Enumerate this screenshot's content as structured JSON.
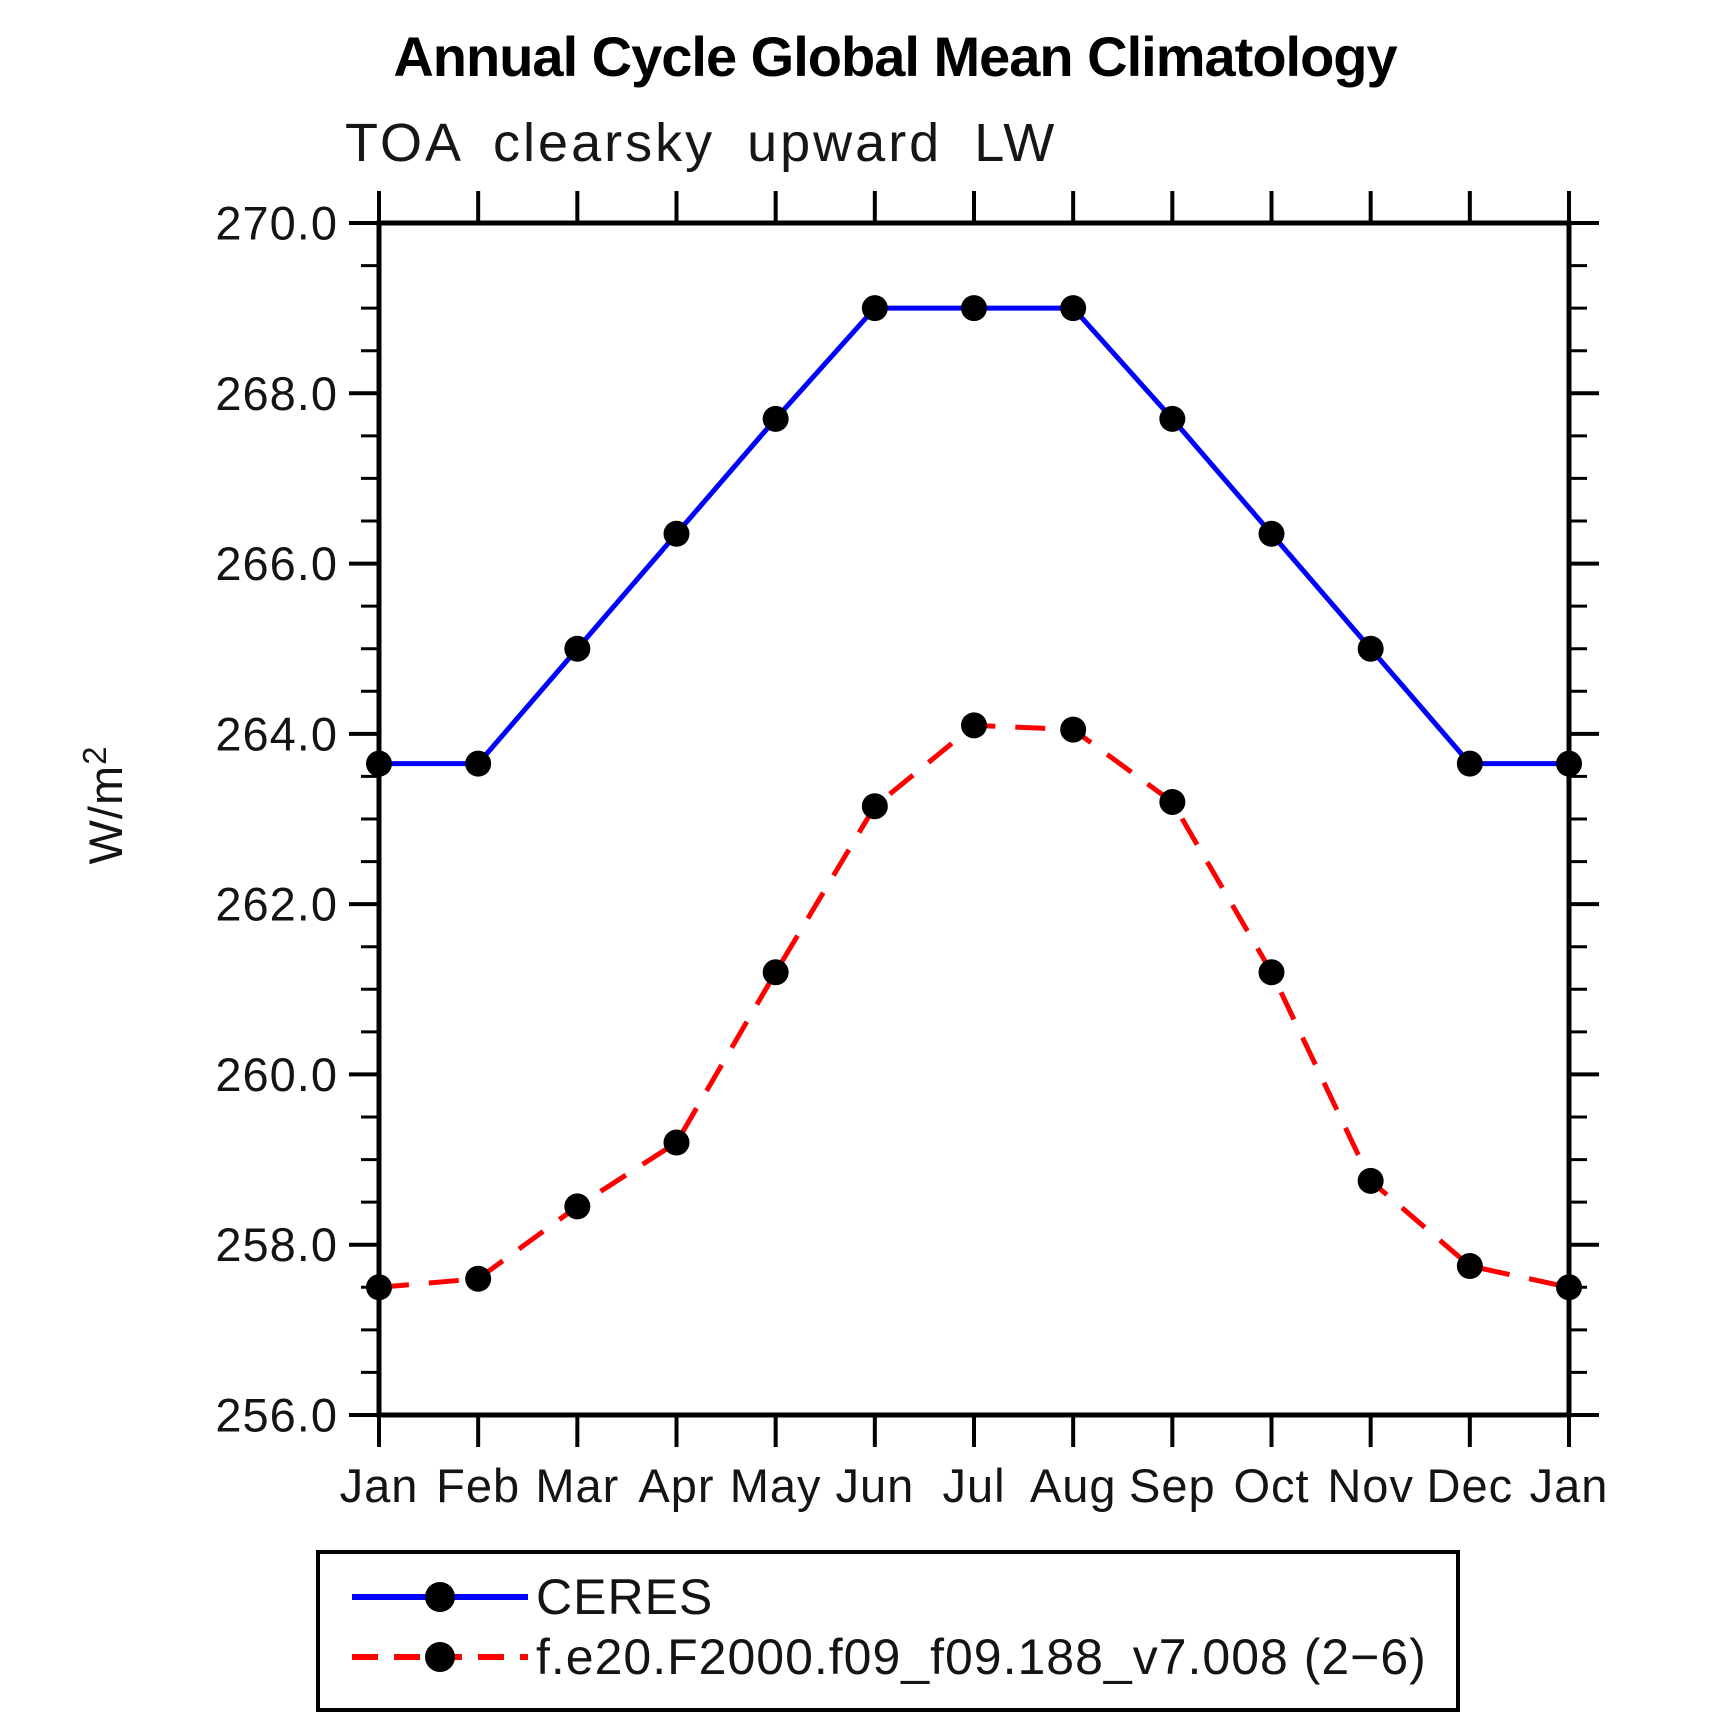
{
  "chart_data": {
    "type": "line",
    "title": "Annual Cycle Global Mean Climatology",
    "subtitle": "TOA clearsky upward LW",
    "ylabel": "W/m²",
    "ylabel_base": "W/m",
    "ylabel_exponent": "2",
    "xlabel": "",
    "categories": [
      "Jan",
      "Feb",
      "Mar",
      "Apr",
      "May",
      "Jun",
      "Jul",
      "Aug",
      "Sep",
      "Oct",
      "Nov",
      "Dec",
      "Jan"
    ],
    "series": [
      {
        "name": "CERES",
        "line_color": "#0000ff",
        "line_style": "solid",
        "marker": "filled-circle",
        "marker_color": "#000000",
        "values": [
          263.65,
          263.65,
          265.0,
          266.35,
          267.7,
          269.0,
          269.0,
          269.0,
          267.7,
          266.35,
          265.0,
          263.65,
          263.65
        ]
      },
      {
        "name": "f.e20.F2000.f09_f09.188_v7.008 (2−6)",
        "line_color": "#ff0000",
        "line_style": "dashed",
        "marker": "filled-circle",
        "marker_color": "#000000",
        "values": [
          257.5,
          257.6,
          258.45,
          259.2,
          261.2,
          263.15,
          264.1,
          264.05,
          263.2,
          261.2,
          258.75,
          257.75,
          257.5
        ]
      }
    ],
    "ylim": [
      256.0,
      270.0
    ],
    "ytick_interval": 2.0,
    "yminor_interval": 0.5,
    "ytick_labels": [
      "256.0",
      "258.0",
      "260.0",
      "262.0",
      "264.0",
      "266.0",
      "268.0",
      "270.0"
    ],
    "grid": false,
    "legend_position": "bottom-left"
  },
  "colors": {
    "axis": "#000000",
    "text": "#141414",
    "ceres_line": "#0000ff",
    "model_line": "#ff0000",
    "marker": "#000000",
    "background": "#ffffff"
  }
}
